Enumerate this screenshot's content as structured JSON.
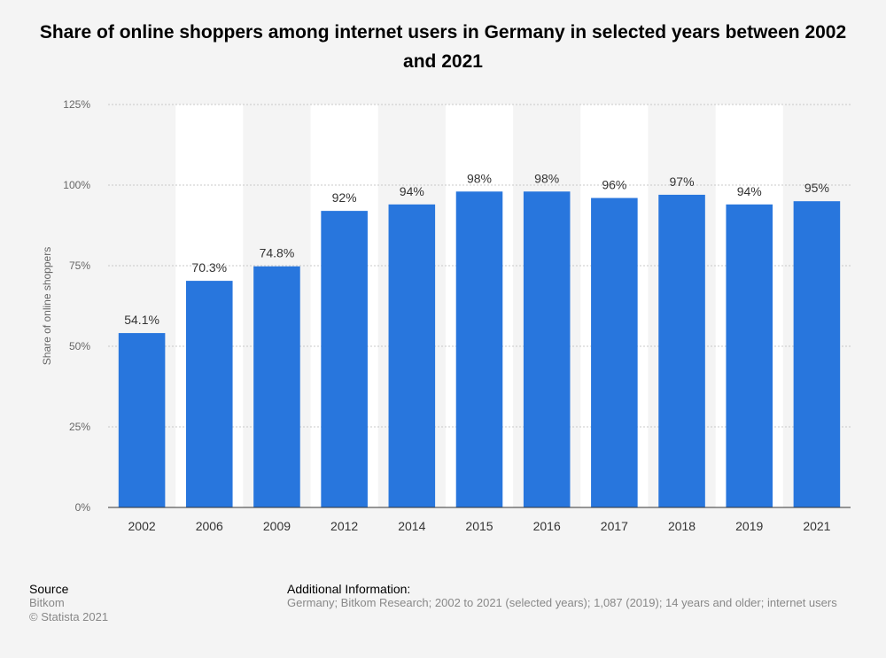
{
  "chart_data": {
    "type": "bar",
    "title": "Share of online shoppers among internet users in Germany in selected years between 2002 and 2021",
    "categories": [
      "2002",
      "2006",
      "2009",
      "2012",
      "2014",
      "2015",
      "2016",
      "2017",
      "2018",
      "2019",
      "2021"
    ],
    "values": [
      54.1,
      70.3,
      74.8,
      92,
      94,
      98,
      98,
      96,
      97,
      94,
      95
    ],
    "value_labels": [
      "54.1%",
      "70.3%",
      "74.8%",
      "92%",
      "94%",
      "98%",
      "98%",
      "96%",
      "97%",
      "94%",
      "95%"
    ],
    "ylabel": "Share of online shoppers",
    "xlabel": "",
    "ylim": [
      0,
      125
    ],
    "yticks": [
      0,
      25,
      50,
      75,
      100,
      125
    ],
    "ytick_labels": [
      "0%",
      "25%",
      "50%",
      "75%",
      "100%",
      "125%"
    ],
    "grid": true,
    "bar_color": "#2876dd"
  },
  "footer": {
    "source_heading": "Source",
    "source_name": "Bitkom",
    "copyright": "© Statista 2021",
    "info_heading": "Additional Information:",
    "info_text": "Germany; Bitkom Research; 2002 to 2021 (selected years); 1,087 (2019); 14 years and older; internet users"
  }
}
